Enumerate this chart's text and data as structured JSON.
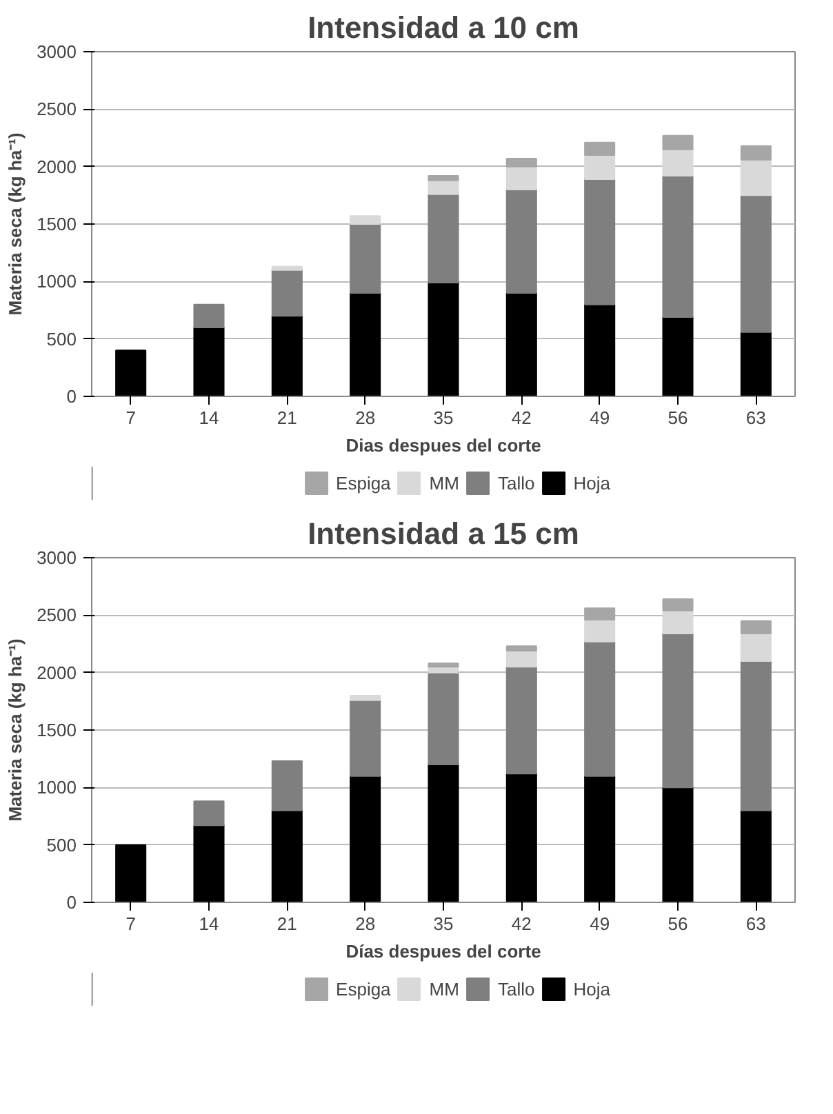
{
  "chart_data": [
    {
      "type": "bar",
      "title": "Intensidad a 10 cm",
      "xlabel": "Dias despues del corte",
      "ylabel": "Materia seca (kg ha⁻¹)",
      "categories": [
        "7",
        "14",
        "21",
        "28",
        "35",
        "42",
        "49",
        "56",
        "63"
      ],
      "stacked": true,
      "ylim": [
        0,
        3000
      ],
      "yticks": [
        0,
        500,
        1000,
        1500,
        2000,
        2500,
        3000
      ],
      "grid": "y",
      "legend": "bottom",
      "series": [
        {
          "name": "Hoja",
          "color": "#000000",
          "values": [
            400,
            600,
            700,
            900,
            990,
            900,
            800,
            690,
            560
          ]
        },
        {
          "name": "Tallo",
          "color": "#7f7f7f",
          "values": [
            0,
            200,
            400,
            600,
            770,
            900,
            1090,
            1230,
            1190
          ]
        },
        {
          "name": "MM",
          "color": "#d9d9d9",
          "values": [
            0,
            0,
            30,
            70,
            120,
            200,
            210,
            230,
            310
          ]
        },
        {
          "name": "Espiga",
          "color": "#a6a6a6",
          "values": [
            0,
            0,
            0,
            0,
            40,
            70,
            110,
            120,
            120
          ]
        }
      ]
    },
    {
      "type": "bar",
      "title": "Intensidad a 15 cm",
      "xlabel": "Días despues del corte",
      "ylabel": "Materia seca (kg ha⁻¹)",
      "categories": [
        "7",
        "14",
        "21",
        "28",
        "35",
        "42",
        "49",
        "56",
        "63"
      ],
      "stacked": true,
      "ylim": [
        0,
        3000
      ],
      "yticks": [
        0,
        500,
        1000,
        1500,
        2000,
        2500,
        3000
      ],
      "grid": "y",
      "legend": "bottom",
      "series": [
        {
          "name": "Hoja",
          "color": "#000000",
          "values": [
            500,
            670,
            800,
            1100,
            1200,
            1120,
            1100,
            1000,
            800
          ]
        },
        {
          "name": "Tallo",
          "color": "#7f7f7f",
          "values": [
            0,
            210,
            430,
            660,
            800,
            930,
            1170,
            1340,
            1300
          ]
        },
        {
          "name": "MM",
          "color": "#d9d9d9",
          "values": [
            0,
            0,
            0,
            40,
            50,
            140,
            190,
            200,
            240
          ]
        },
        {
          "name": "Espiga",
          "color": "#a6a6a6",
          "values": [
            0,
            0,
            0,
            0,
            30,
            40,
            100,
            100,
            110
          ]
        }
      ]
    }
  ]
}
